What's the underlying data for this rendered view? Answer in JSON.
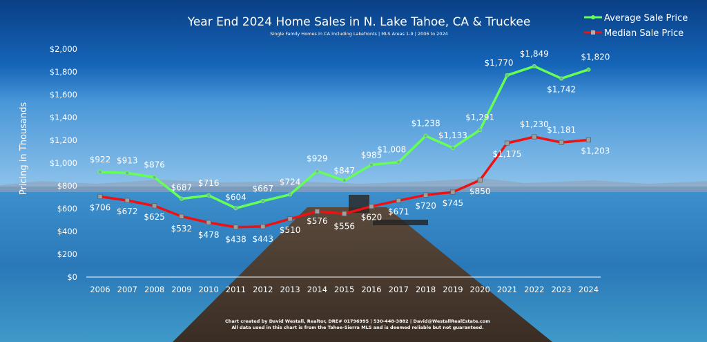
{
  "chart_data": {
    "type": "line",
    "title": "Year End 2024 Home Sales in N. Lake Tahoe, CA & Truckee",
    "subtitle": "Single Family Homes In CA Including Lakefronts | MLS Areas 1-9 | 2006 to 2024",
    "ylabel": "Pricing in Thousands",
    "xlabel": "",
    "ylim": [
      0,
      2000
    ],
    "yticks": [
      0,
      200,
      400,
      600,
      800,
      1000,
      1200,
      1400,
      1600,
      1800,
      2000
    ],
    "ytick_labels": [
      "$0",
      "$200",
      "$400",
      "$600",
      "$800",
      "$1,000",
      "$1,200",
      "$1,400",
      "$1,600",
      "$1,800",
      "$2,000"
    ],
    "categories": [
      "2006",
      "2007",
      "2008",
      "2009",
      "2010",
      "2011",
      "2012",
      "2013",
      "2014",
      "2015",
      "2016",
      "2017",
      "2018",
      "2019",
      "2020",
      "2021",
      "2022",
      "2023",
      "2024"
    ],
    "legend_position": "top-right",
    "grid": false,
    "series": [
      {
        "name": "Average Sale Price",
        "color": "#66ff55",
        "values": [
          922,
          913,
          876,
          687,
          716,
          604,
          667,
          724,
          929,
          847,
          985,
          1008,
          1238,
          1133,
          1291,
          1770,
          1849,
          1742,
          1820
        ],
        "labels": [
          "$922",
          "$913",
          "$876",
          "$687",
          "$716",
          "$604",
          "$667",
          "$724",
          "$929",
          "$847",
          "$985",
          "$1,008",
          "$1,238",
          "$1,133",
          "$1,291",
          "$1,770",
          "$1,849",
          "$1,742",
          "$1,820"
        ]
      },
      {
        "name": "Median Sale Price",
        "color": "#ee1111",
        "values": [
          706,
          672,
          625,
          532,
          478,
          438,
          443,
          510,
          576,
          556,
          620,
          671,
          720,
          745,
          850,
          1175,
          1230,
          1181,
          1203
        ],
        "labels": [
          "$706",
          "$672",
          "$625",
          "$532",
          "$478",
          "$438",
          "$443",
          "$510",
          "$576",
          "$556",
          "$620",
          "$671",
          "$720",
          "$745",
          "$850",
          "$1,175",
          "$1,230",
          "$1,181",
          "$1,203"
        ]
      }
    ],
    "footer": [
      "Chart created by David Westall, Realtor, DRE# 01796995 | 530-448-3882 | David@WestallRealEstate.com",
      "All data used in this chart is from the Tahoe-Sierra MLS and is deemed reliable but not guaranteed."
    ]
  }
}
